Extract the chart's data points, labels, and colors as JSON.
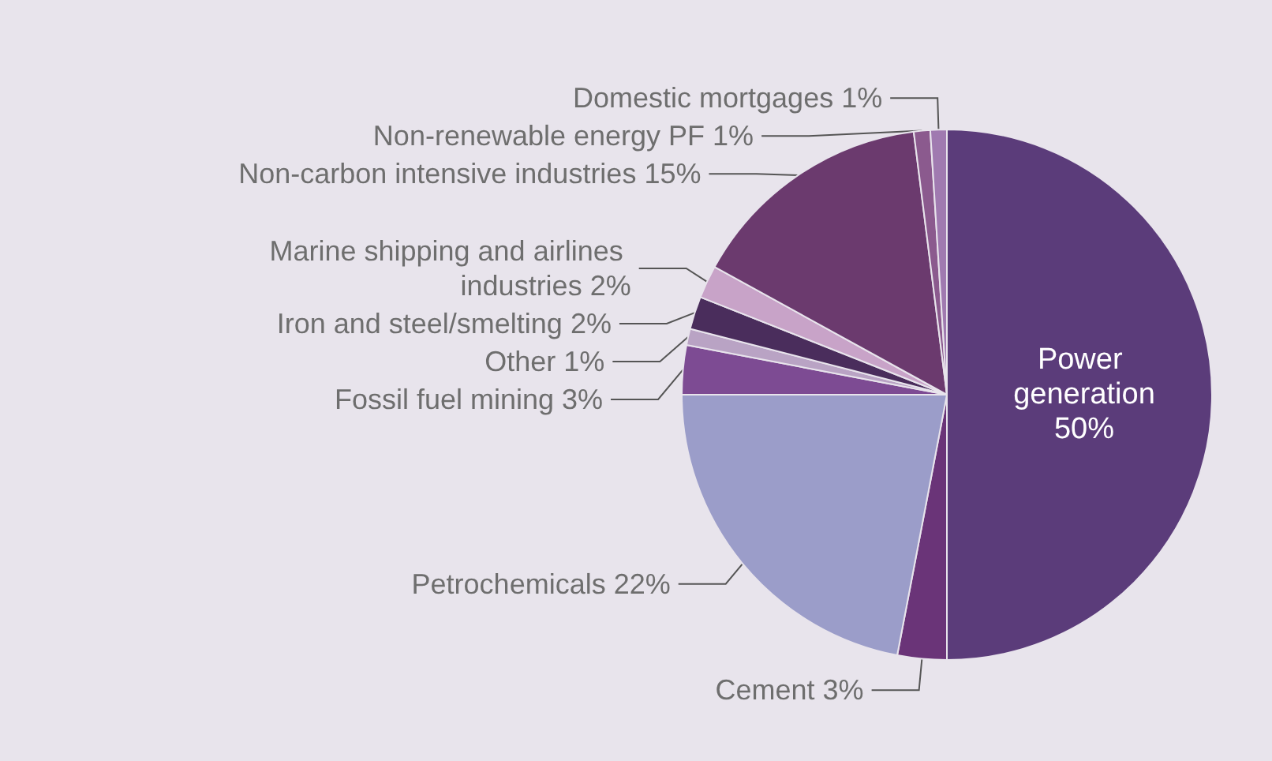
{
  "chart_data": {
    "type": "pie",
    "categories": [
      "Power generation",
      "Cement",
      "Petrochemicals",
      "Fossil fuel mining",
      "Other",
      "Iron and steel/smelting",
      "Marine shipping and airlines industries",
      "Non-carbon intensive industries",
      "Non-renewable energy PF",
      "Domestic mortgages"
    ],
    "values": [
      50,
      3,
      22,
      3,
      1,
      2,
      2,
      15,
      1,
      1
    ],
    "value_labels": [
      "50%",
      "3%",
      "22%",
      "3%",
      "1%",
      "2%",
      "2%",
      "15%",
      "1%",
      "1%"
    ],
    "colors": [
      "#5b3c7a",
      "#6a3478",
      "#9b9dc9",
      "#7d4b93",
      "#b9a3c4",
      "#4a2d5c",
      "#c8a3c8",
      "#6b3a6e",
      "#8b5a8e",
      "#a07ab0"
    ],
    "legend": false
  }
}
